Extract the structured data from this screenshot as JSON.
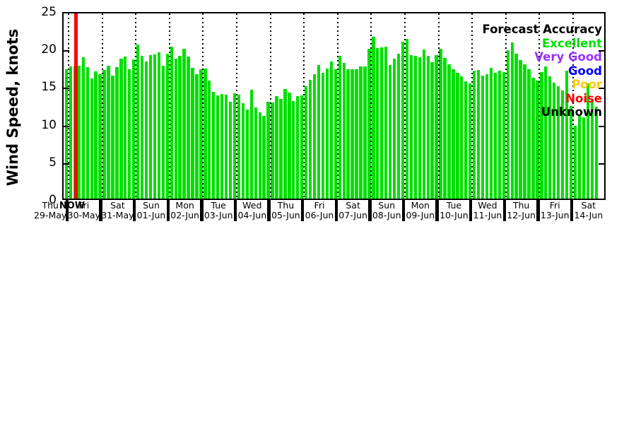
{
  "now_label": "NOW",
  "legend": {
    "title": "Forecast Accuracy",
    "title_color": "#000000",
    "items": [
      {
        "label": "Excellent",
        "color": "#00df00"
      },
      {
        "label": "Very Good",
        "color": "#9933ff"
      },
      {
        "label": "Good",
        "color": "#0000ff"
      },
      {
        "label": "Poor",
        "color": "#ffc800"
      },
      {
        "label": "Noise",
        "color": "#ff0000"
      },
      {
        "label": "Unknown",
        "color": "#000000"
      }
    ]
  },
  "chart_data": {
    "type": "bar",
    "title": "",
    "ylabel": "Wind Speed, knots",
    "ylim": [
      0,
      25
    ],
    "yticks": [
      0,
      5,
      10,
      15,
      20,
      25
    ],
    "grid": "vertical-dotted-per-day",
    "legend_position": "top-right",
    "bar_color": "#00df00",
    "now_line_color": "#ff0000",
    "bars_per_day": 8,
    "interval_hours": 3,
    "days": [
      {
        "weekday": "Thu",
        "date": "29-May",
        "start_slot": 7,
        "values": [
          17.2
        ]
      },
      {
        "weekday": "Fri",
        "date": "30-May",
        "start_slot": 0,
        "values": [
          17.6,
          17.6,
          17.7,
          18.8,
          17.5,
          16.0,
          16.9,
          16.5
        ]
      },
      {
        "weekday": "Sat",
        "date": "31-May",
        "start_slot": 0,
        "values": [
          17.1,
          17.7,
          16.4,
          17.5,
          18.6,
          18.9,
          17.2,
          18.5
        ]
      },
      {
        "weekday": "Sun",
        "date": "01-Jun",
        "start_slot": 0,
        "values": [
          20.5,
          19.0,
          18.2,
          19.1,
          19.2,
          19.5,
          17.7,
          19.3
        ]
      },
      {
        "weekday": "Mon",
        "date": "02-Jun",
        "start_slot": 0,
        "values": [
          20.2,
          18.6,
          19.0,
          19.9,
          18.9,
          17.4,
          16.5,
          17.2
        ]
      },
      {
        "weekday": "Tue",
        "date": "03-Jun",
        "start_slot": 0,
        "values": [
          17.3,
          15.7,
          14.2,
          13.7,
          13.9,
          13.8,
          12.9,
          14.0
        ]
      },
      {
        "weekday": "Wed",
        "date": "04-Jun",
        "start_slot": 0,
        "values": [
          13.8,
          12.7,
          11.8,
          14.5,
          12.1,
          11.5,
          11.0,
          12.9
        ]
      },
      {
        "weekday": "Thu",
        "date": "05-Jun",
        "start_slot": 0,
        "values": [
          12.8,
          13.6,
          13.3,
          14.6,
          14.1,
          13.0,
          13.6,
          13.7
        ]
      },
      {
        "weekday": "Fri",
        "date": "06-Jun",
        "start_slot": 0,
        "values": [
          14.9,
          15.8,
          16.5,
          17.8,
          16.7,
          17.3,
          18.2,
          17.2
        ]
      },
      {
        "weekday": "Sat",
        "date": "07-Jun",
        "start_slot": 0,
        "values": [
          19.0,
          18.0,
          17.2,
          17.2,
          17.2,
          17.6,
          17.6,
          19.9
        ]
      },
      {
        "weekday": "Sun",
        "date": "08-Jun",
        "start_slot": 0,
        "values": [
          21.5,
          20.0,
          20.1,
          20.2,
          17.8,
          18.6,
          19.3,
          20.9
        ]
      },
      {
        "weekday": "Mon",
        "date": "09-Jun",
        "start_slot": 0,
        "values": [
          21.2,
          19.1,
          19.0,
          18.8,
          19.8,
          19.0,
          18.1,
          19.1
        ]
      },
      {
        "weekday": "Tue",
        "date": "10-Jun",
        "start_slot": 0,
        "values": [
          19.9,
          18.7,
          17.9,
          17.2,
          16.7,
          16.3,
          15.6,
          15.3
        ]
      },
      {
        "weekday": "Wed",
        "date": "11-Jun",
        "start_slot": 0,
        "values": [
          17.0,
          17.1,
          16.4,
          16.5,
          17.4,
          16.7,
          17.0,
          16.8
        ]
      },
      {
        "weekday": "Thu",
        "date": "12-Jun",
        "start_slot": 0,
        "values": [
          19.7,
          20.8,
          19.3,
          18.4,
          17.9,
          17.2,
          16.1,
          15.7
        ]
      },
      {
        "weekday": "Fri",
        "date": "13-Jun",
        "start_slot": 0,
        "values": [
          16.8,
          17.6,
          16.3,
          15.4,
          14.9,
          14.4,
          17.0,
          12.3
        ]
      },
      {
        "weekday": "Sat",
        "date": "14-Jun",
        "start_slot": 0,
        "values": [
          9.7,
          11.1,
          10.8,
          15.3,
          13.1,
          12.2
        ]
      }
    ],
    "now_position": {
      "day": "30-May",
      "after_slot": 1
    }
  }
}
